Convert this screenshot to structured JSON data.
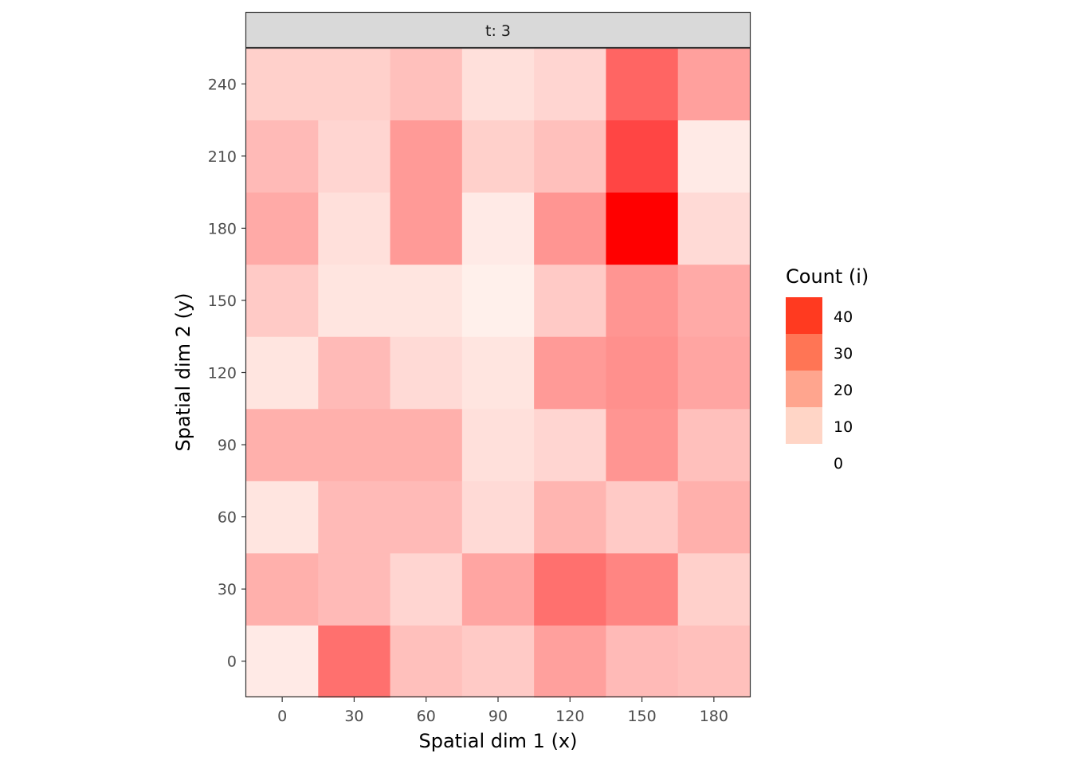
{
  "chart_data": {
    "type": "heatmap",
    "facet_label": "t: 3",
    "xlabel": "Spatial dim 1 (x)",
    "ylabel": "Spatial dim 2 (y)",
    "x": [
      0,
      30,
      60,
      90,
      120,
      150,
      180
    ],
    "y": [
      0,
      30,
      60,
      90,
      120,
      150,
      180,
      210,
      240
    ],
    "x_ticks": [
      "0",
      "30",
      "60",
      "90",
      "120",
      "150",
      "180"
    ],
    "y_ticks": [
      "0",
      "30",
      "60",
      "90",
      "120",
      "150",
      "180",
      "210",
      "240"
    ],
    "cell_size": 30,
    "values_by_y": [
      [
        2,
        25,
        10,
        8,
        16,
        11,
        10
      ],
      [
        13,
        11,
        6,
        15,
        25,
        21,
        7
      ],
      [
        3,
        11,
        11,
        5,
        12,
        8,
        13
      ],
      [
        13,
        13,
        13,
        4,
        6,
        18,
        10
      ],
      [
        3,
        11,
        5,
        3,
        17,
        19,
        15
      ],
      [
        8,
        3,
        3,
        1,
        8,
        18,
        14
      ],
      [
        14,
        4,
        17,
        2,
        18,
        46,
        5
      ],
      [
        11,
        6,
        17,
        7,
        10,
        33,
        2
      ],
      [
        7,
        7,
        10,
        4,
        6,
        27,
        16
      ]
    ],
    "legend": {
      "title": "Count (i)",
      "breaks": [
        40,
        30,
        20,
        10,
        0
      ],
      "labels": [
        "40",
        "30",
        "20",
        "10",
        "0"
      ],
      "bin_colors": [
        "#ff3a20",
        "#ff7555",
        "#ffa58e",
        "#ffd5c6"
      ]
    },
    "color_scale": {
      "low": "#fff5f0",
      "high": "#ff0000",
      "min": 0,
      "max": 46
    },
    "grid": false
  }
}
